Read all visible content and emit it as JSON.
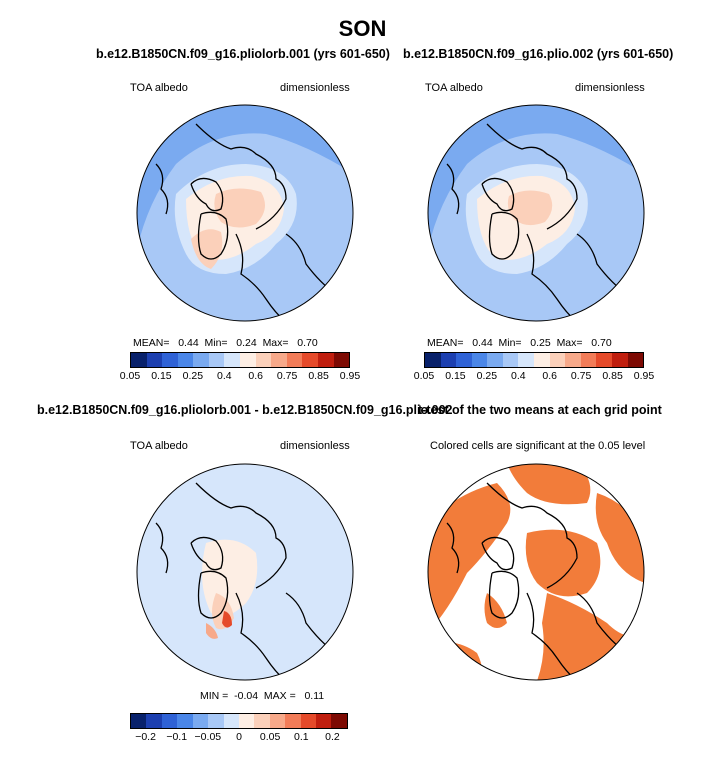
{
  "title": "SON",
  "panels": [
    {
      "title": "b.e12.B1850CN.f09_g16.pliolorb.001 (yrs 601-650)",
      "left_label": "TOA albedo",
      "right_label": "dimensionless",
      "stats": "MEAN=   0.44  Min=   0.24  Max=   0.70"
    },
    {
      "title": "b.e12.B1850CN.f09_g16.plio.002 (yrs 601-650)",
      "left_label": "TOA albedo",
      "right_label": "dimensionless",
      "stats": "MEAN=   0.44  Min=   0.25  Max=   0.70"
    },
    {
      "title": "b.e12.B1850CN.f09_g16.pliolorb.001 - b.e12.B1850CN.f09_g16.plio.002",
      "left_label": "TOA albedo",
      "right_label": "dimensionless",
      "stats": "MIN =  -0.04  MAX =   0.11"
    },
    {
      "title": "t-test of the two means at each grid point",
      "subtitle": "Colored cells are significant at the 0.05 level"
    }
  ],
  "colorbar_abs": {
    "colors": [
      "#08216b",
      "#1c3fb0",
      "#2f62d6",
      "#4a86e8",
      "#7aaaf0",
      "#a8c8f6",
      "#d6e6fb",
      "#fdeee4",
      "#fbd0ba",
      "#f7a98a",
      "#f27c58",
      "#e54a2a",
      "#c01e0e",
      "#7d0a03"
    ],
    "ticks": [
      "0.05",
      "0.15",
      "0.25",
      "0.4",
      "0.6",
      "0.75",
      "0.85",
      "0.95"
    ]
  },
  "colorbar_diff": {
    "colors": [
      "#08216b",
      "#1c3fb0",
      "#2f62d6",
      "#4a86e8",
      "#7aaaf0",
      "#a8c8f6",
      "#d6e6fb",
      "#fdeee4",
      "#fbd0ba",
      "#f7a98a",
      "#f27c58",
      "#e54a2a",
      "#c01e0e",
      "#7d0a03"
    ],
    "ticks": [
      "−0.2",
      "−0.1",
      "−0.05",
      "0",
      "0.05",
      "0.1",
      "0.2"
    ]
  },
  "chart_data": [
    {
      "type": "heatmap",
      "title": "b.e12.B1850CN.f09_g16.pliolorb.001 (yrs 601-650)",
      "variable": "TOA albedo",
      "units": "dimensionless",
      "projection": "north polar stereographic",
      "mean": 0.44,
      "min": 0.24,
      "max": 0.7,
      "levels": [
        0.05,
        0.1,
        0.15,
        0.2,
        0.25,
        0.3,
        0.4,
        0.5,
        0.6,
        0.7,
        0.75,
        0.8,
        0.85,
        0.9,
        0.95
      ]
    },
    {
      "type": "heatmap",
      "title": "b.e12.B1850CN.f09_g16.plio.002 (yrs 601-650)",
      "variable": "TOA albedo",
      "units": "dimensionless",
      "projection": "north polar stereographic",
      "mean": 0.44,
      "min": 0.25,
      "max": 0.7,
      "levels": [
        0.05,
        0.1,
        0.15,
        0.2,
        0.25,
        0.3,
        0.4,
        0.5,
        0.6,
        0.7,
        0.75,
        0.8,
        0.85,
        0.9,
        0.95
      ]
    },
    {
      "type": "heatmap",
      "title": "b.e12.B1850CN.f09_g16.pliolorb.001 - b.e12.B1850CN.f09_g16.plio.002",
      "variable": "TOA albedo",
      "units": "dimensionless",
      "projection": "north polar stereographic",
      "min": -0.04,
      "max": 0.11,
      "levels": [
        -0.2,
        -0.1,
        -0.05,
        0,
        0.05,
        0.1,
        0.2
      ]
    },
    {
      "type": "heatmap",
      "title": "t-test of the two means at each grid point",
      "subtitle": "Colored cells are significant at the 0.05 level",
      "projection": "north polar stereographic",
      "significance_level": 0.05
    }
  ]
}
